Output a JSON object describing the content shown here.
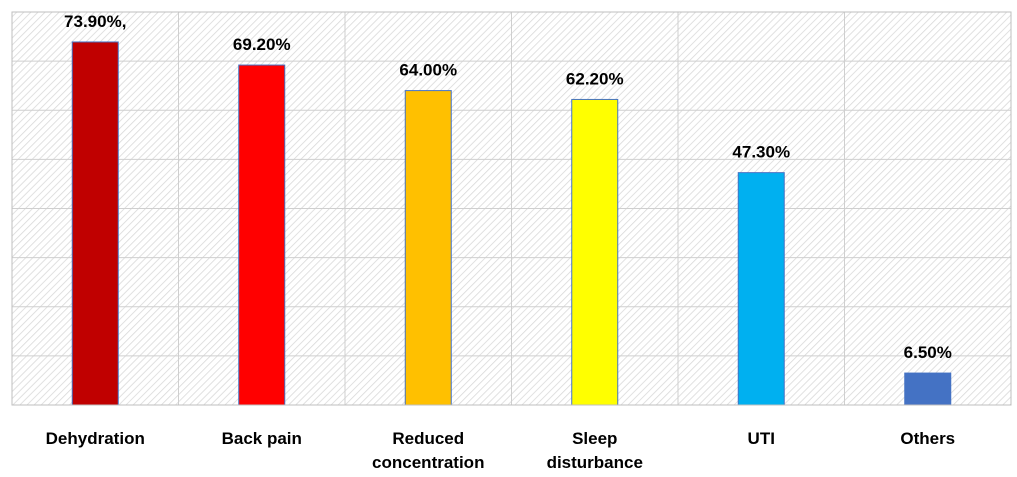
{
  "chart_data": {
    "type": "bar",
    "categories": [
      [
        "Dehydration"
      ],
      [
        "Back pain"
      ],
      [
        "Reduced",
        "concentration"
      ],
      [
        "Sleep",
        "disturbance"
      ],
      [
        "UTI"
      ],
      [
        "Others"
      ]
    ],
    "values": [
      73.9,
      69.2,
      64.0,
      62.2,
      47.3,
      6.5
    ],
    "data_labels": [
      "73.90%,",
      "69.20%",
      "64.00%",
      "62.20%",
      "47.30%",
      "6.50%"
    ],
    "colors": [
      "#C00000",
      "#FF0000",
      "#FFC000",
      "#FFFF00",
      "#00B0F0",
      "#4472C4"
    ],
    "bar_outline": "#4472C4",
    "ylim": [
      0,
      80
    ],
    "grid": true,
    "grid_step": 10,
    "plot_fill": "hatched-gray",
    "title": "",
    "xlabel": "",
    "ylabel": ""
  }
}
